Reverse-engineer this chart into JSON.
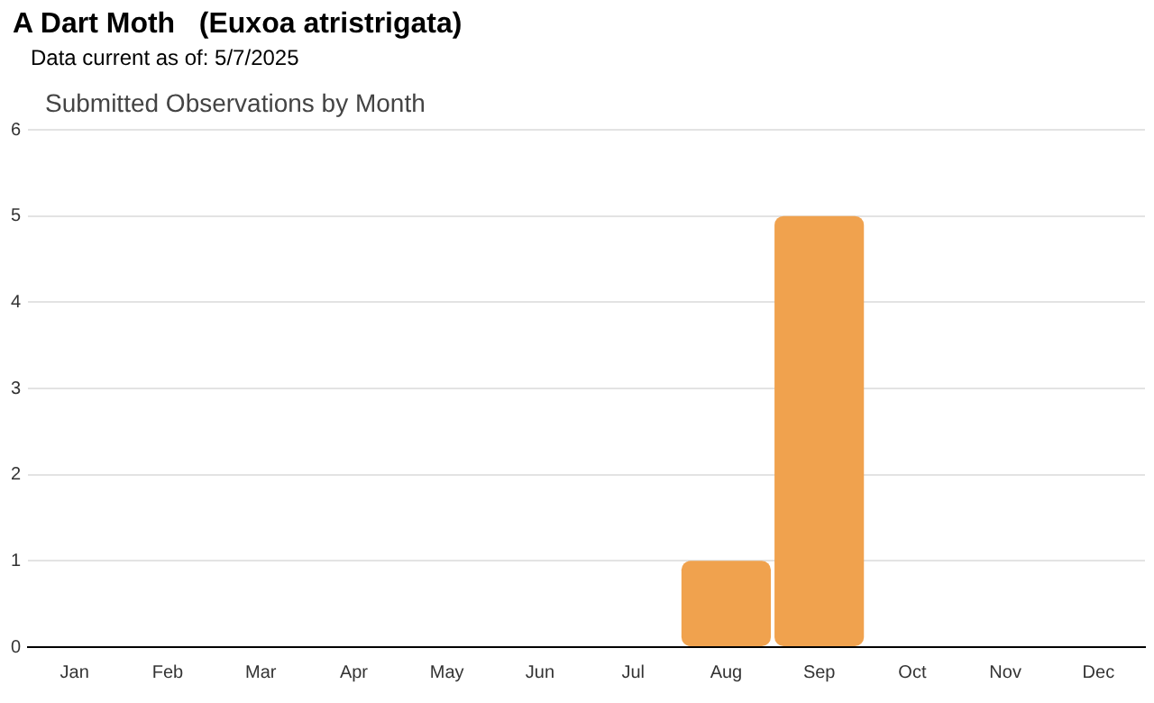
{
  "chart_data": {
    "type": "bar",
    "title": "A Dart Moth   (Euxoa atristrigata)",
    "subtitle": "Data current as of: 5/7/2025",
    "annotations": [
      "Submitted Observations by Month"
    ],
    "categories": [
      "Jan",
      "Feb",
      "Mar",
      "Apr",
      "May",
      "Jun",
      "Jul",
      "Aug",
      "Sep",
      "Oct",
      "Nov",
      "Dec"
    ],
    "values": [
      0,
      0,
      0,
      0,
      0,
      0,
      0,
      1,
      5,
      0,
      0,
      0
    ],
    "color": "#f0a24e",
    "ylim": [
      0,
      6
    ],
    "yticks": [
      0,
      1,
      2,
      3,
      4,
      5,
      6
    ],
    "grid": "y",
    "legend": false
  }
}
